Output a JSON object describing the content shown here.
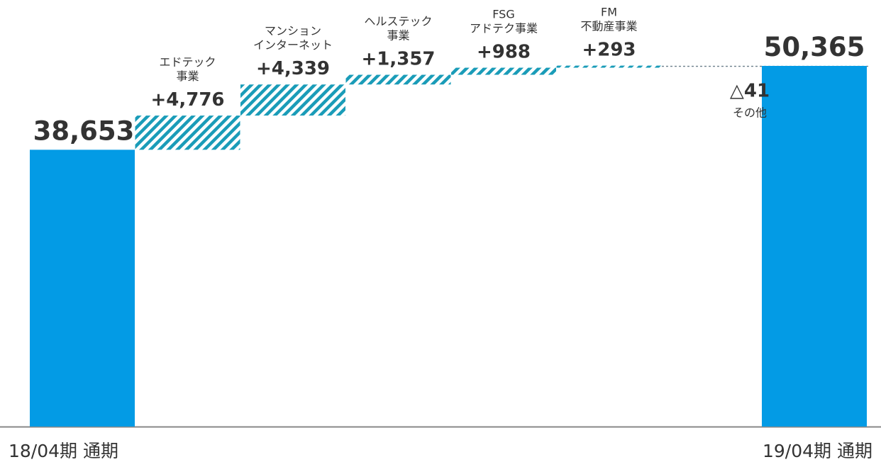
{
  "chart_data": {
    "type": "bar",
    "subtype": "waterfall",
    "colors": {
      "total": "#039be5",
      "increase": "#1a9cb8",
      "axis": "#888888",
      "connector": "#6b7f8a",
      "text": "#333333"
    },
    "start": {
      "category": "18/04期 通期",
      "value": 38653,
      "value_label": "38,653"
    },
    "steps": [
      {
        "name_lines": [
          "エドテック",
          "事業"
        ],
        "value": 4776,
        "value_label": "+4,776"
      },
      {
        "name_lines": [
          "マンション",
          "インターネット"
        ],
        "value": 4339,
        "value_label": "+4,339"
      },
      {
        "name_lines": [
          "ヘルステック",
          "事業"
        ],
        "value": 1357,
        "value_label": "+1,357"
      },
      {
        "name_lines": [
          "FSG",
          "アドテク事業"
        ],
        "value": 988,
        "value_label": "+988"
      },
      {
        "name_lines": [
          "FM",
          "不動産事業"
        ],
        "value": 293,
        "value_label": "+293"
      },
      {
        "name_lines": [
          "その他"
        ],
        "value": -41,
        "value_label": "△41"
      }
    ],
    "end": {
      "category": "19/04期 通期",
      "value": 50365,
      "value_label": "50,365"
    },
    "xlabel": "",
    "ylabel": "",
    "grid": false,
    "legend": "none"
  }
}
